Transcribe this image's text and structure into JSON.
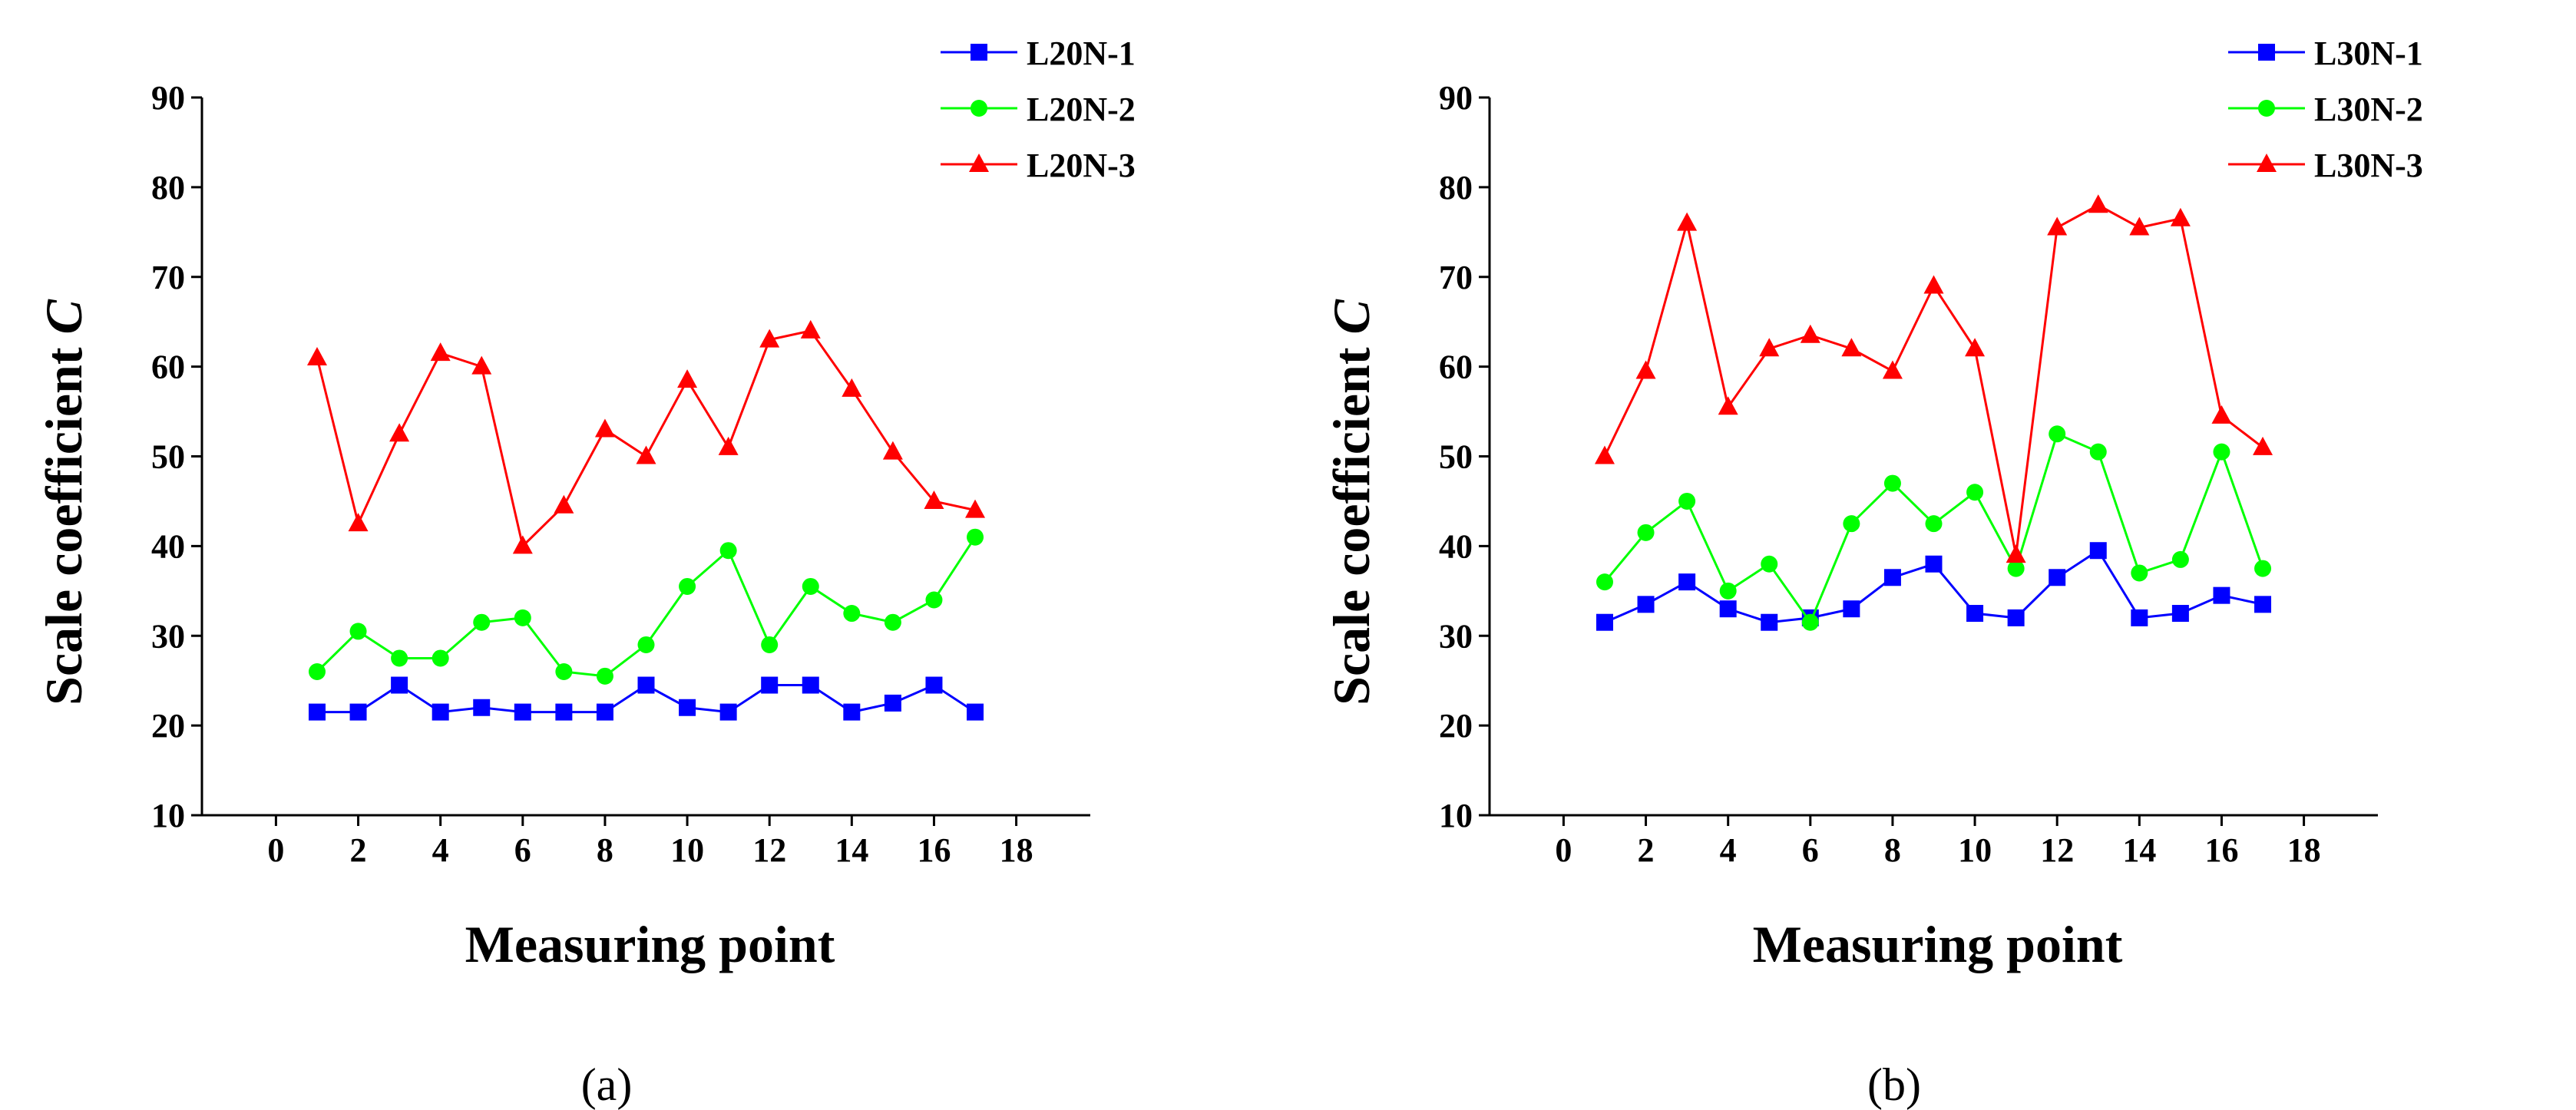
{
  "chart_data": [
    {
      "type": "line",
      "caption": "(a)",
      "xlabel": "Measuring point",
      "ylabel": "Scale coefficient",
      "ylabel_symbol": "C",
      "xlim": [
        -1.8,
        19.8
      ],
      "ylim": [
        10,
        90
      ],
      "xticks": [
        0,
        2,
        4,
        6,
        8,
        10,
        12,
        14,
        16,
        18
      ],
      "yticks": [
        10,
        20,
        30,
        40,
        50,
        60,
        70,
        80,
        90
      ],
      "grid": false,
      "legend": "top-right",
      "x": [
        1,
        2,
        3,
        4,
        5,
        6,
        7,
        8,
        9,
        10,
        11,
        12,
        13,
        14,
        15,
        16,
        17
      ],
      "series": [
        {
          "name": "L20N-1",
          "color": "#0000ff",
          "marker": "square",
          "values": [
            21.5,
            21.5,
            24.5,
            21.5,
            22,
            21.5,
            21.5,
            21.5,
            24.5,
            22,
            21.5,
            24.5,
            24.5,
            21.5,
            22.5,
            24.5,
            21.5
          ]
        },
        {
          "name": "L20N-2",
          "color": "#00ff00",
          "marker": "circle",
          "values": [
            26,
            30.5,
            27.5,
            27.5,
            31.5,
            32,
            26,
            25.5,
            29,
            35.5,
            39.5,
            29,
            35.5,
            32.5,
            31.5,
            34,
            41
          ]
        },
        {
          "name": "L20N-3",
          "color": "#ff0000",
          "marker": "triangle",
          "values": [
            61,
            42.5,
            52.5,
            61.5,
            60,
            40,
            44.5,
            53,
            50,
            58.5,
            51,
            63,
            64,
            57.5,
            50.5,
            45,
            44
          ]
        }
      ]
    },
    {
      "type": "line",
      "caption": "(b)",
      "xlabel": "Measuring point",
      "ylabel": "Scale coefficient",
      "ylabel_symbol": "C",
      "xlim": [
        -1.8,
        19.8
      ],
      "ylim": [
        10,
        90
      ],
      "xticks": [
        0,
        2,
        4,
        6,
        8,
        10,
        12,
        14,
        16,
        18
      ],
      "yticks": [
        10,
        20,
        30,
        40,
        50,
        60,
        70,
        80,
        90
      ],
      "grid": false,
      "legend": "top-right",
      "x": [
        1,
        2,
        3,
        4,
        5,
        6,
        7,
        8,
        9,
        10,
        11,
        12,
        13,
        14,
        15,
        16,
        17
      ],
      "series": [
        {
          "name": "L30N-1",
          "color": "#0000ff",
          "marker": "square",
          "values": [
            31.5,
            33.5,
            36,
            33,
            31.5,
            32,
            33,
            36.5,
            38,
            32.5,
            32,
            36.5,
            39.5,
            32,
            32.5,
            34.5,
            33.5
          ]
        },
        {
          "name": "L30N-2",
          "color": "#00ff00",
          "marker": "circle",
          "values": [
            36,
            41.5,
            45,
            35,
            38,
            31.5,
            42.5,
            47,
            42.5,
            46,
            37.5,
            52.5,
            50.5,
            37,
            38.5,
            50.5,
            37.5
          ]
        },
        {
          "name": "L30N-3",
          "color": "#ff0000",
          "marker": "triangle",
          "values": [
            50,
            59.5,
            76,
            55.5,
            62,
            63.5,
            62,
            59.5,
            69,
            62,
            39,
            75.5,
            78,
            75.5,
            76.5,
            54.5,
            51
          ]
        }
      ]
    }
  ]
}
